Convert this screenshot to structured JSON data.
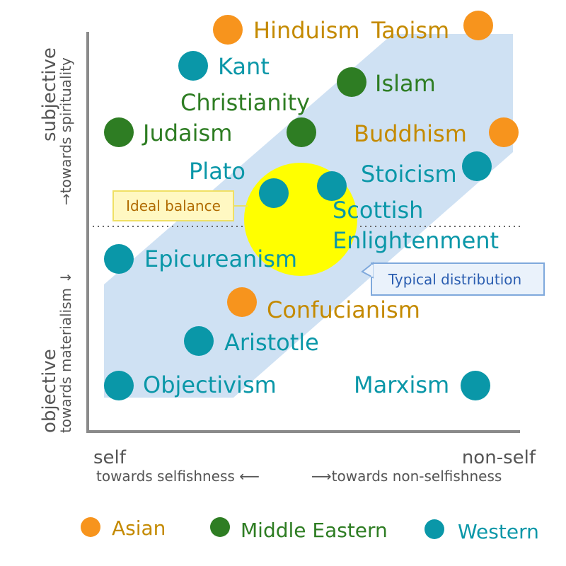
{
  "axes": {
    "y_top": "subjective",
    "y_top_sub": "→towards spirituality",
    "y_bottom": "objective",
    "y_bottom_sub": "towards materialism ↓",
    "x_left": "self",
    "x_right": "non-self",
    "x_left_sub": "towards selfishness ⟵",
    "x_right_sub": "⟶towards non-selfishness"
  },
  "callouts": {
    "ideal": "Ideal balance",
    "typical": "Typical distribution"
  },
  "colors": {
    "asian": "#f7941d",
    "middle_eastern": "#2e7d23",
    "western": "#0a97a8",
    "asian_text": "#c48a00",
    "band": "#cfe1f3",
    "ideal": "#ffff00",
    "axis": "#8a8a8a"
  },
  "points": [
    {
      "label": "Hinduism",
      "group": "asian"
    },
    {
      "label": "Taoism",
      "group": "asian"
    },
    {
      "label": "Kant",
      "group": "western"
    },
    {
      "label": "Islam",
      "group": "middle_eastern"
    },
    {
      "label": "Christianity",
      "group": "middle_eastern"
    },
    {
      "label": "Judaism",
      "group": "middle_eastern"
    },
    {
      "label": "Buddhism",
      "group": "asian"
    },
    {
      "label": "Plato",
      "group": "western"
    },
    {
      "label": "Stoicism",
      "group": "western"
    },
    {
      "label": "Scottish",
      "group": "western"
    },
    {
      "label": "Enlightenment",
      "group": "western"
    },
    {
      "label": "Epicureanism",
      "group": "western"
    },
    {
      "label": "Confucianism",
      "group": "asian"
    },
    {
      "label": "Aristotle",
      "group": "western"
    },
    {
      "label": "Objectivism",
      "group": "western"
    },
    {
      "label": "Marxism",
      "group": "western"
    }
  ],
  "legend": [
    {
      "label": "Asian",
      "group": "asian"
    },
    {
      "label": "Middle Eastern",
      "group": "middle_eastern"
    },
    {
      "label": "Western",
      "group": "western"
    }
  ]
}
